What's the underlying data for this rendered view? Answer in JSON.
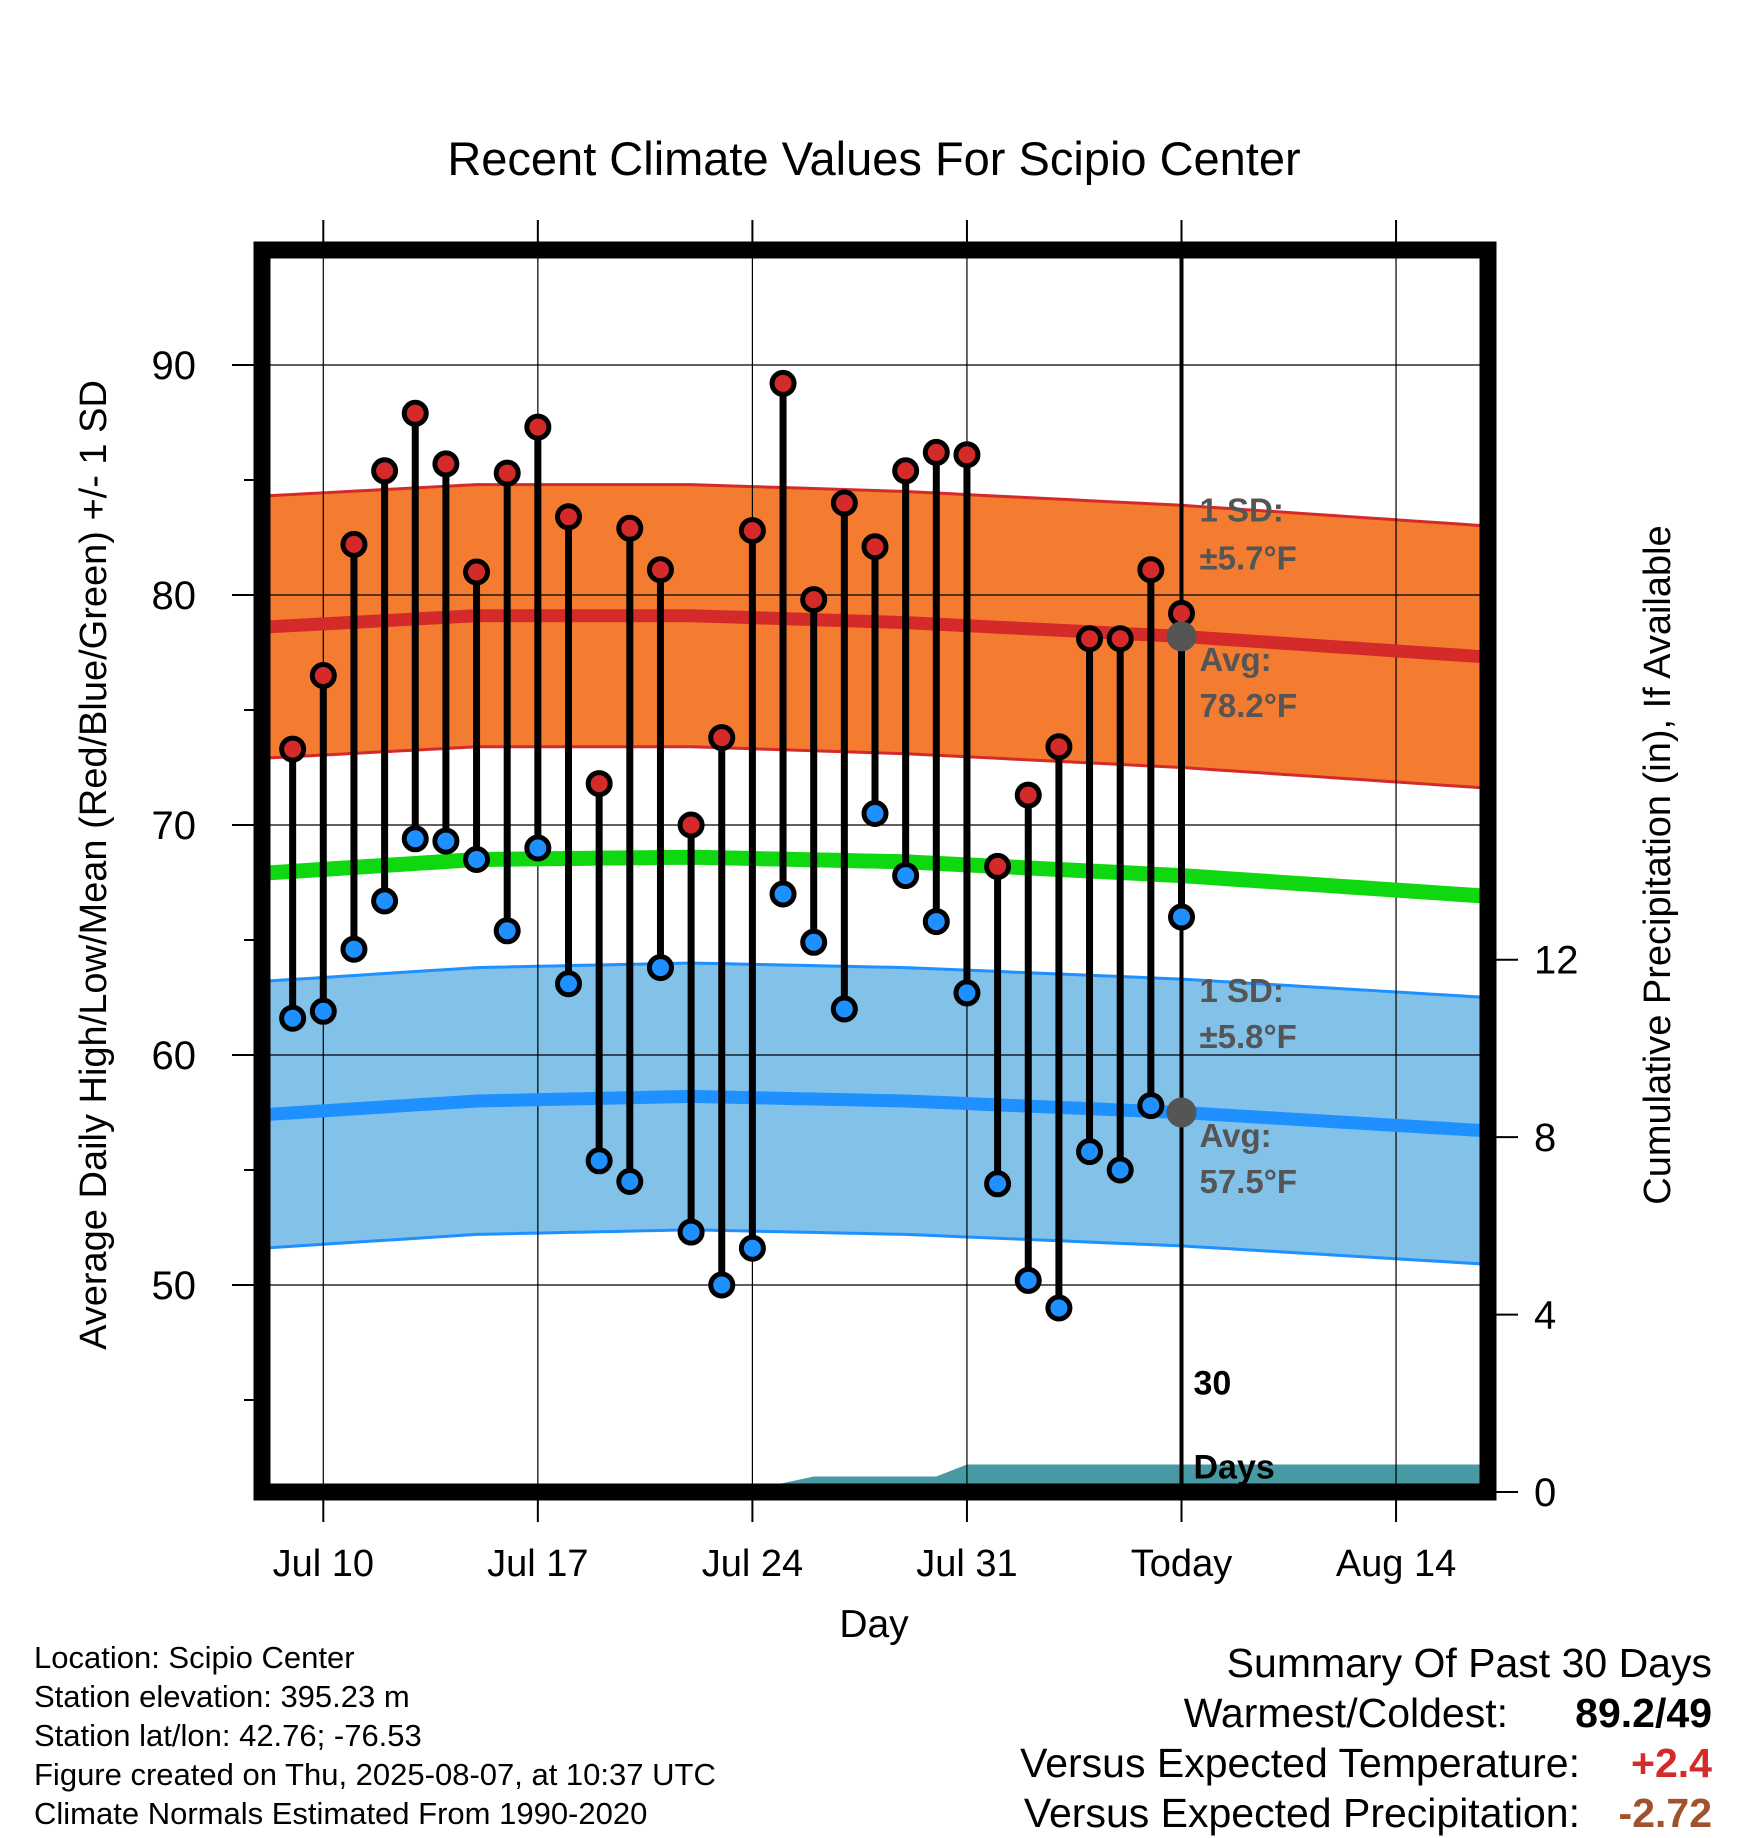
{
  "title": "Recent Climate Values For Scipio Center",
  "chart_data": {
    "type": "range",
    "title": "Recent Climate Values For Scipio Center",
    "xlabel": "Day",
    "ylabel": "Average Daily High/Low/Mean (Red/Blue/Green) +/- 1 SD",
    "y2label": "Cumulative Precipitation (in), If Available",
    "xlim": [
      "Jul 8",
      "Aug 17"
    ],
    "ylim": [
      41,
      95
    ],
    "y2lim": [
      0,
      28
    ],
    "x_ticks": [
      {
        "label": "Jul 10",
        "date": "Jul 10"
      },
      {
        "label": "Jul 17",
        "date": "Jul 17"
      },
      {
        "label": "Jul 24",
        "date": "Jul 24"
      },
      {
        "label": "Jul 31",
        "date": "Jul 31"
      },
      {
        "label": "Today",
        "date": "Aug 7"
      },
      {
        "label": "Aug 14",
        "date": "Aug 14"
      }
    ],
    "y_ticks": [
      "50",
      "60",
      "70",
      "80",
      "90"
    ],
    "y2_ticks": [
      "0",
      "4",
      "8",
      "12"
    ],
    "grid": true,
    "today": "Aug 7",
    "dates": [
      "Jul 9",
      "Jul 10",
      "Jul 11",
      "Jul 12",
      "Jul 13",
      "Jul 14",
      "Jul 15",
      "Jul 16",
      "Jul 17",
      "Jul 18",
      "Jul 19",
      "Jul 20",
      "Jul 21",
      "Jul 22",
      "Jul 23",
      "Jul 24",
      "Jul 25",
      "Jul 26",
      "Jul 27",
      "Jul 28",
      "Jul 29",
      "Jul 30",
      "Jul 31",
      "Aug 1",
      "Aug 2",
      "Aug 3",
      "Aug 4",
      "Aug 5",
      "Aug 6",
      "Aug 7"
    ],
    "daily_high": [
      73.3,
      76.5,
      82.2,
      85.4,
      87.9,
      85.7,
      81.0,
      85.3,
      87.3,
      83.4,
      71.8,
      82.9,
      81.1,
      70.0,
      73.8,
      82.8,
      89.2,
      79.8,
      84.0,
      82.1,
      85.4,
      86.2,
      86.1,
      68.2,
      71.3,
      73.4,
      78.1,
      78.1,
      81.1,
      79.2
    ],
    "daily_low": [
      61.6,
      61.9,
      64.6,
      66.7,
      69.4,
      69.3,
      68.5,
      65.4,
      69.0,
      63.1,
      55.4,
      54.5,
      63.8,
      52.3,
      50.0,
      51.6,
      67.0,
      64.9,
      62.0,
      70.5,
      67.8,
      65.8,
      62.7,
      54.4,
      50.2,
      49.0,
      55.8,
      55.0,
      57.8,
      66.0
    ],
    "normal_high": {
      "dates": [
        "Jul 8",
        "Jul 15",
        "Jul 22",
        "Jul 29",
        "Aug 7",
        "Aug 17"
      ],
      "avg": [
        78.6,
        79.1,
        79.1,
        78.8,
        78.2,
        77.3
      ],
      "sd": 5.7,
      "annotation": {
        "sd_label": "1 SD:",
        "sd_value": "±5.7°F",
        "avg_label": "Avg:",
        "avg_value": "78.2°F"
      }
    },
    "normal_low": {
      "dates": [
        "Jul 8",
        "Jul 15",
        "Jul 22",
        "Jul 29",
        "Aug 7",
        "Aug 17"
      ],
      "avg": [
        57.4,
        58.0,
        58.2,
        58.0,
        57.5,
        56.7
      ],
      "sd": 5.8,
      "annotation": {
        "sd_label": "1 SD:",
        "sd_value": "±5.8°F",
        "avg_label": "Avg:",
        "avg_value": "57.5°F"
      }
    },
    "normal_mean": {
      "dates": [
        "Jul 8",
        "Jul 15",
        "Jul 22",
        "Jul 29",
        "Aug 7",
        "Aug 17"
      ],
      "values": [
        67.9,
        68.5,
        68.6,
        68.4,
        67.8,
        66.9
      ]
    },
    "precipitation": {
      "label": "30 Days",
      "dates": [
        "Jul 8",
        "Jul 15",
        "Jul 16",
        "Jul 23",
        "Jul 24",
        "Jul 25",
        "Jul 26",
        "Jul 30",
        "Jul 31",
        "Aug 17"
      ],
      "values": [
        0.0,
        0.0,
        0.02,
        0.05,
        0.05,
        0.2,
        0.35,
        0.35,
        0.62,
        0.62
      ]
    },
    "colors": {
      "high": "#d42a2a",
      "low": "#1e90ff",
      "high_band": "#f47c30",
      "low_band": "#82c1e8",
      "mean": "#10d810",
      "precip": "#479aa3",
      "annotation": "#555555"
    }
  },
  "footer": {
    "location": "Location: Scipio Center",
    "elevation": "Station elevation: 395.23 m",
    "latlon": "Station lat/lon: 42.76; -76.53",
    "created": "Figure created on Thu, 2025-08-07, at 10:37 UTC",
    "normals": "Climate Normals Estimated From 1990-2020"
  },
  "summary": {
    "title": "Summary Of Past 30 Days",
    "warmest_coldest_label": "Warmest/Coldest:",
    "warmest": "89.2",
    "separator": "/",
    "coldest": "49",
    "temp_label": "Versus Expected Temperature:",
    "temp_value": "+2.4",
    "temp_color": "#d42a2a",
    "precip_label": "Versus Expected Precipitation:",
    "precip_value": "-2.72",
    "precip_color": "#a0522d"
  }
}
